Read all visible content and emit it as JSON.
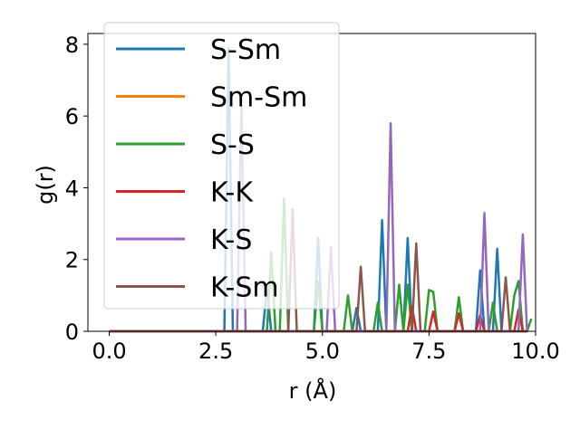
{
  "chart_data": {
    "type": "line",
    "title": "",
    "xlabel": "r (Å)",
    "ylabel": "g(r)",
    "xlim": [
      -0.5,
      10.0
    ],
    "ylim": [
      0,
      8.3
    ],
    "x_ticks": [
      0.0,
      2.5,
      5.0,
      7.5,
      10.0
    ],
    "x_tick_labels": [
      "0.0",
      "2.5",
      "5.0",
      "7.5",
      "10.0"
    ],
    "y_ticks": [
      0,
      2,
      4,
      6,
      8
    ],
    "y_tick_labels": [
      "0",
      "2",
      "4",
      "6",
      "8"
    ],
    "grid": false,
    "legend_position": "upper-left",
    "series": [
      {
        "name": "S-Sm",
        "color": "#1f77b4",
        "x": [
          0,
          2.7,
          2.8,
          2.9,
          3.6,
          3.7,
          3.8,
          4.8,
          4.9,
          5.0,
          5.7,
          5.8,
          5.9,
          6.3,
          6.4,
          6.5,
          6.9,
          7.0,
          7.1,
          8.6,
          8.7,
          8.8,
          9.0,
          9.1,
          9.2,
          9.8
        ],
        "y": [
          0,
          0,
          7.9,
          0,
          0,
          1.2,
          0,
          0,
          2.6,
          0,
          0,
          0.65,
          0,
          0,
          3.1,
          0,
          0,
          2.6,
          0,
          0,
          1.7,
          0,
          0,
          2.3,
          0,
          0
        ]
      },
      {
        "name": "Sm-Sm",
        "color": "#ff7f0e",
        "x": [
          0,
          9.8
        ],
        "y": [
          0,
          0
        ]
      },
      {
        "name": "S-S",
        "color": "#2ca02c",
        "x": [
          0,
          3.7,
          3.8,
          3.9,
          4.0,
          4.1,
          4.2,
          4.8,
          4.9,
          5.0,
          5.5,
          5.6,
          5.7,
          6.2,
          6.3,
          6.4,
          6.7,
          6.8,
          6.9,
          7.0,
          7.1,
          7.4,
          7.5,
          7.6,
          7.7,
          8.1,
          8.2,
          8.3,
          8.9,
          9.0,
          9.1,
          9.4,
          9.5,
          9.6,
          9.7,
          9.8,
          9.9
        ],
        "y": [
          0,
          0,
          2.2,
          0,
          0,
          3.7,
          0,
          0,
          1.4,
          0,
          0,
          1.0,
          0,
          0,
          0.8,
          0,
          0,
          1.3,
          0,
          1.3,
          0,
          0,
          1.15,
          1.1,
          0,
          0,
          0.95,
          0,
          0,
          0.8,
          0,
          0,
          1.0,
          1.4,
          0,
          0,
          0.35
        ]
      },
      {
        "name": "K-K",
        "color": "#d62728",
        "x": [
          0,
          7.0,
          7.1,
          7.2,
          7.5,
          7.6,
          7.7,
          8.1,
          8.2,
          8.3,
          8.6,
          8.7,
          8.8,
          9.5,
          9.6,
          9.7,
          9.8
        ],
        "y": [
          0,
          0,
          0.7,
          0,
          0,
          0.55,
          0,
          0,
          0.5,
          0,
          0,
          0.45,
          0,
          0,
          0.6,
          0,
          0
        ]
      },
      {
        "name": "K-S",
        "color": "#9467bd",
        "x": [
          0,
          3.0,
          3.1,
          3.2,
          5.1,
          5.2,
          5.3,
          6.5,
          6.6,
          6.7,
          8.7,
          8.8,
          8.9,
          9.6,
          9.7,
          9.8
        ],
        "y": [
          0,
          0,
          6.3,
          0,
          0,
          2.35,
          0,
          0,
          5.8,
          0,
          0,
          3.3,
          0,
          0,
          2.7,
          0
        ]
      },
      {
        "name": "K-Sm",
        "color": "#8c564b",
        "x": [
          0,
          4.2,
          4.3,
          4.4,
          5.8,
          5.9,
          6.0,
          7.1,
          7.2,
          7.3,
          9.2,
          9.3,
          9.4,
          9.8
        ],
        "y": [
          0,
          0,
          3.4,
          0,
          0,
          1.8,
          0,
          0,
          2.45,
          0,
          0,
          1.5,
          0,
          0
        ]
      }
    ]
  }
}
